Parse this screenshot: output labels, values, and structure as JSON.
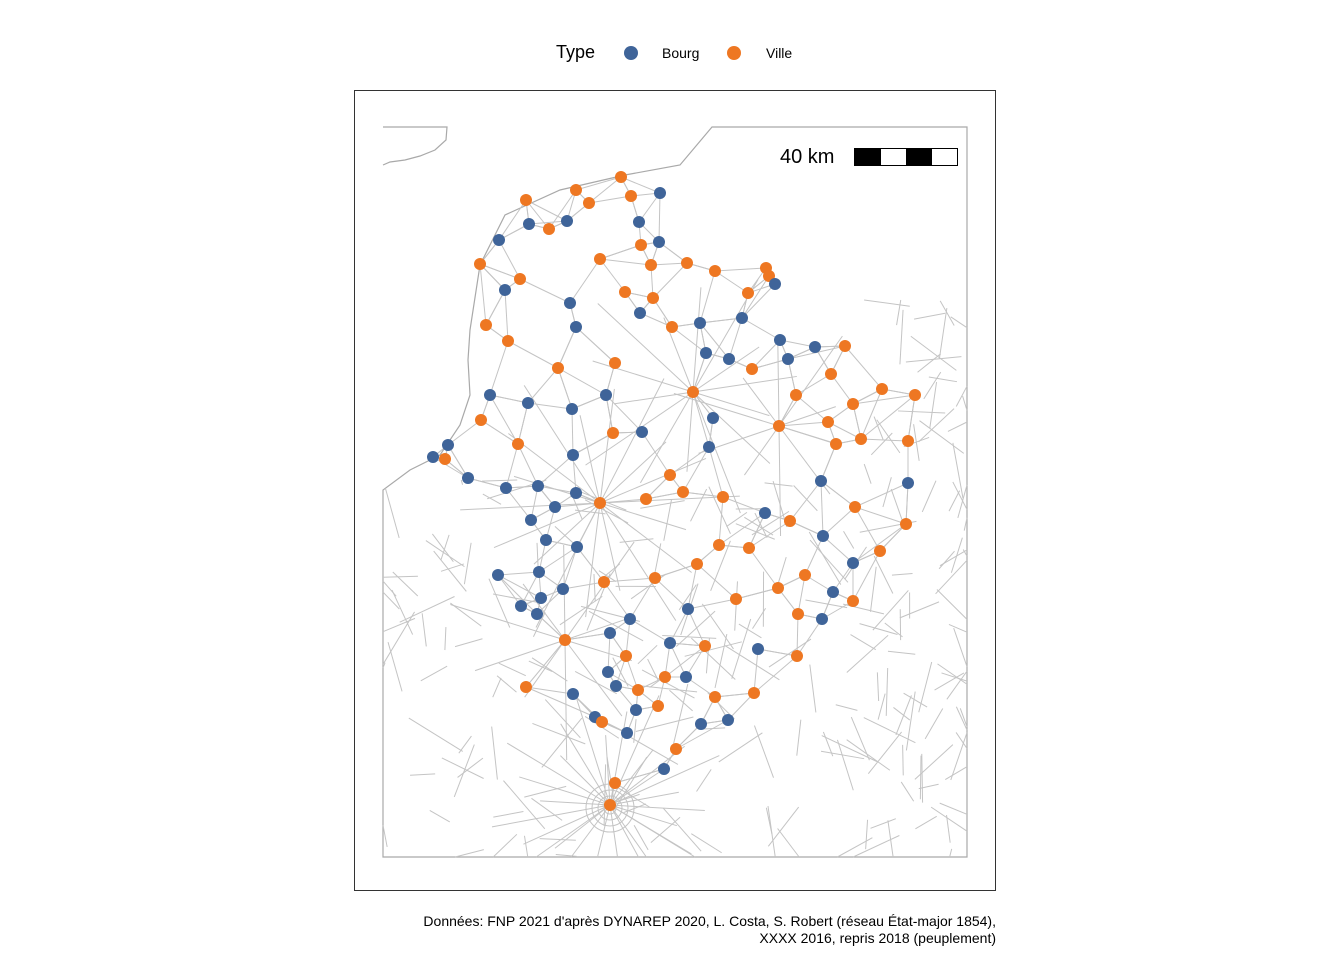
{
  "legend": {
    "title": "Type",
    "items": [
      {
        "label": "Bourg",
        "color": "#3f6499"
      },
      {
        "label": "Ville",
        "color": "#ee7722"
      }
    ]
  },
  "scale": {
    "label": "40 km"
  },
  "caption": {
    "line1": "Données: FNP 2021 d'après DYNAREP 2020, L. Costa, S. Robert (réseau État-major 1854),",
    "line2": "XXXX 2016, repris 2018 (peuplement)"
  },
  "colors": {
    "road": "#c4c4c4",
    "outline": "#a9a9a9"
  }
}
